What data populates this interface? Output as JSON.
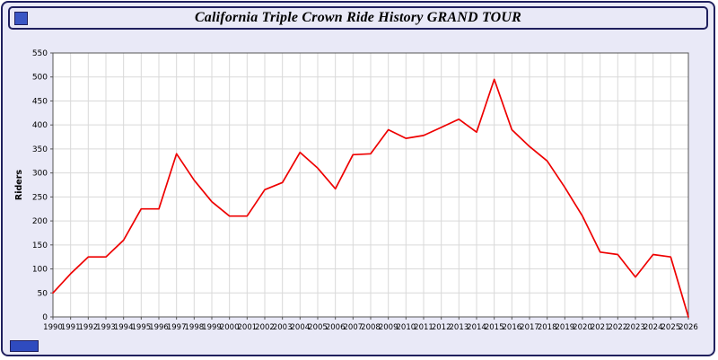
{
  "title": "California Triple Crown Ride History GRAND TOUR",
  "colors": {
    "line": "#ee0000",
    "background": "#e9e9f7",
    "border": "#20205e",
    "grid": "#d9d9d9",
    "plot_bg": "#ffffff",
    "axis": "#555555",
    "text": "#000000"
  },
  "chart_data": {
    "type": "line",
    "title": "California Triple Crown Ride History GRAND TOUR",
    "xlabel": "",
    "ylabel": "Riders",
    "ylim": [
      0,
      550
    ],
    "ytick_step": 50,
    "grid": true,
    "legend_position": "none",
    "x": [
      1990,
      1991,
      1992,
      1993,
      1994,
      1995,
      1996,
      1997,
      1998,
      1999,
      2000,
      2001,
      2002,
      2003,
      2004,
      2005,
      2006,
      2007,
      2008,
      2009,
      2010,
      2011,
      2012,
      2013,
      2014,
      2015,
      2016,
      2017,
      2018,
      2019,
      2020,
      2021,
      2022,
      2023,
      2024,
      2025,
      2026
    ],
    "series": [
      {
        "name": "Riders",
        "color": "#ee0000",
        "values": [
          50,
          90,
          125,
          125,
          160,
          225,
          225,
          340,
          285,
          240,
          210,
          210,
          265,
          280,
          343,
          310,
          267,
          338,
          340,
          390,
          372,
          378,
          395,
          412,
          385,
          495,
          390,
          355,
          325,
          270,
          210,
          135,
          130,
          83,
          130,
          125,
          0
        ]
      }
    ]
  }
}
